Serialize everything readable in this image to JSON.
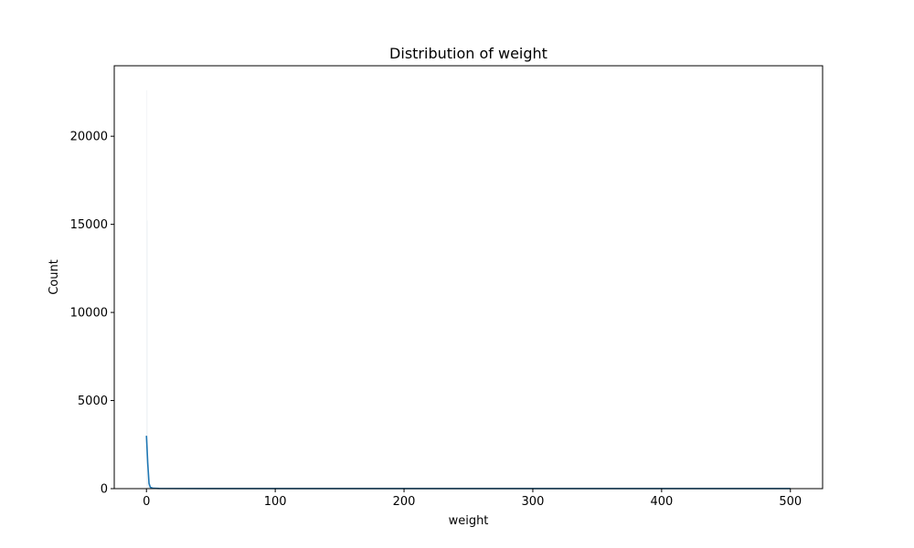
{
  "chart_data": {
    "type": "bar",
    "title": "Distribution of weight",
    "xlabel": "weight",
    "ylabel": "Count",
    "xlim": [
      -25,
      525
    ],
    "ylim": [
      0,
      24000
    ],
    "xticks": [
      0,
      100,
      200,
      300,
      400,
      500
    ],
    "yticks": [
      0,
      5000,
      10000,
      15000,
      20000
    ],
    "grid": false,
    "legend": "none",
    "bar_color": "#1f77b4",
    "kde_color": "#1f77b4",
    "histogram": {
      "bin_width": 0.5,
      "bins": [
        {
          "x": 0.0,
          "count": 22600
        },
        {
          "x": 0.5,
          "count": 15200
        },
        {
          "x": 1.0,
          "count": 1450
        },
        {
          "x": 1.5,
          "count": 400
        },
        {
          "x": 2.0,
          "count": 150
        },
        {
          "x": 2.5,
          "count": 60
        },
        {
          "x": 3.0,
          "count": 25
        }
      ]
    },
    "kde": {
      "x": [
        0,
        1,
        2,
        3,
        5,
        10,
        50,
        100,
        200,
        300,
        400,
        500
      ],
      "y": [
        3000,
        1450,
        300,
        80,
        20,
        10,
        5,
        3,
        2,
        2,
        2,
        2
      ]
    }
  }
}
